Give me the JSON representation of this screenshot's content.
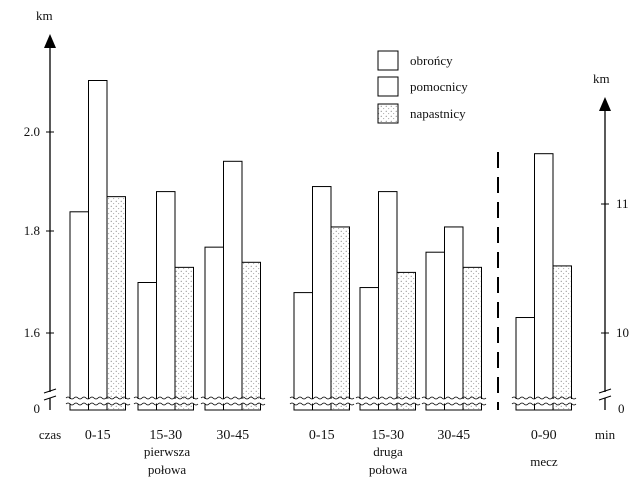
{
  "chart_data": {
    "type": "bar",
    "left_axis": {
      "unit": "km",
      "ticks": [
        "0",
        "1.6",
        "1.8",
        "2.0"
      ]
    },
    "right_axis": {
      "unit": "km",
      "ticks": [
        "0",
        "10",
        "11"
      ]
    },
    "x_row_label": "czas",
    "x_unit": "min",
    "categories": [
      {
        "label": "0-15",
        "half": "first",
        "axis": "left"
      },
      {
        "label": "15-30",
        "half": "first",
        "axis": "left"
      },
      {
        "label": "30-45",
        "half": "first",
        "axis": "left"
      },
      {
        "label": "0-15",
        "half": "second",
        "axis": "left"
      },
      {
        "label": "15-30",
        "half": "second",
        "axis": "left"
      },
      {
        "label": "30-45",
        "half": "second",
        "axis": "left"
      },
      {
        "label": "0-90",
        "half": "match",
        "axis": "right"
      }
    ],
    "group_labels": {
      "first": [
        "pierwsza",
        "połowa"
      ],
      "second": [
        "druga",
        "połowa"
      ],
      "match": [
        "mecz"
      ]
    },
    "series": [
      {
        "name": "obrońcy",
        "style": "white",
        "values": [
          1.84,
          1.7,
          1.77,
          1.68,
          1.69,
          1.76,
          10.12
        ]
      },
      {
        "name": "pomocnicy",
        "style": "white",
        "values": [
          2.1,
          1.88,
          1.94,
          1.89,
          1.88,
          1.81,
          11.39
        ]
      },
      {
        "name": "napastnicy",
        "style": "dotted",
        "values": [
          1.87,
          1.73,
          1.74,
          1.81,
          1.72,
          1.73,
          10.52
        ]
      }
    ],
    "legend_position": "top-center",
    "grid": false,
    "axis_break": true
  }
}
